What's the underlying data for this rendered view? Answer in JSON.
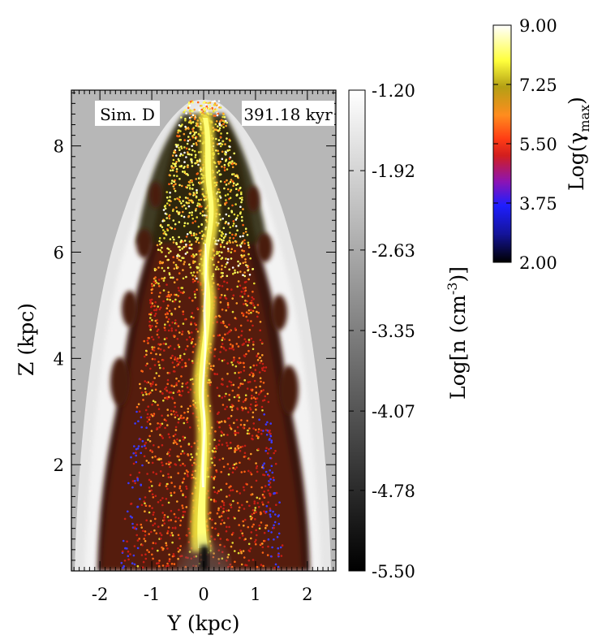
{
  "chart_data": {
    "type": "heatmap",
    "xlabel": "Y (kpc)",
    "ylabel": "Z (kpc)",
    "xlim": [
      -2.55,
      2.55
    ],
    "ylim": [
      0,
      9.05
    ],
    "xticks": [
      -2,
      -1,
      0,
      1,
      2
    ],
    "xtick_labels": [
      "-2",
      "-1",
      "0",
      "1",
      "2"
    ],
    "yticks": [
      2,
      4,
      6,
      8
    ],
    "ytick_labels": [
      "2",
      "4",
      "6",
      "8"
    ],
    "annotations": {
      "sim_label": "Sim. D",
      "time_label": "391.18 kyr"
    },
    "density_colorbar": {
      "label": "Log[n (cm-3)]",
      "label_main": "Log[n (cm",
      "label_sup": "-3",
      "label_close": ")]",
      "range": [
        -5.5,
        -1.2
      ],
      "ticks": [
        -1.2,
        -1.92,
        -2.63,
        -3.35,
        -4.07,
        -4.78,
        -5.5
      ],
      "tick_labels": [
        "-1.20",
        "-1.92",
        "-2.63",
        "-3.35",
        "-4.07",
        "-4.78",
        "-5.50"
      ],
      "colormap": [
        "#000000",
        "#ffffff"
      ],
      "orientation": "vertical",
      "placement": "right of plot"
    },
    "lorentz_colorbar": {
      "label": "Log(γmax)",
      "label_main": "Log(γ",
      "label_sub": "max",
      "label_close": ")",
      "range": [
        2.0,
        9.0
      ],
      "ticks": [
        9.0,
        7.25,
        5.5,
        3.75,
        2.0
      ],
      "tick_labels": [
        "9.00",
        "7.25",
        "5.50",
        "3.75",
        "2.00"
      ],
      "colormap": [
        "#000000",
        "#14149a",
        "#1e1eff",
        "#8c14b4",
        "#d21e1e",
        "#ff3c14",
        "#ff8c1e",
        "#b4a014",
        "#ffff3c",
        "#ffffff"
      ],
      "orientation": "vertical",
      "placement": "top-right"
    },
    "features": {
      "background_density": -2.0,
      "cocoon_color": "#f0f0f0",
      "jet_color": "#ffef40",
      "particle_colors": [
        "#c81e14",
        "#ff6414",
        "#ffa028",
        "#e6dc32",
        "#ffff64",
        "#ffffff",
        "#3c3cff"
      ]
    }
  }
}
